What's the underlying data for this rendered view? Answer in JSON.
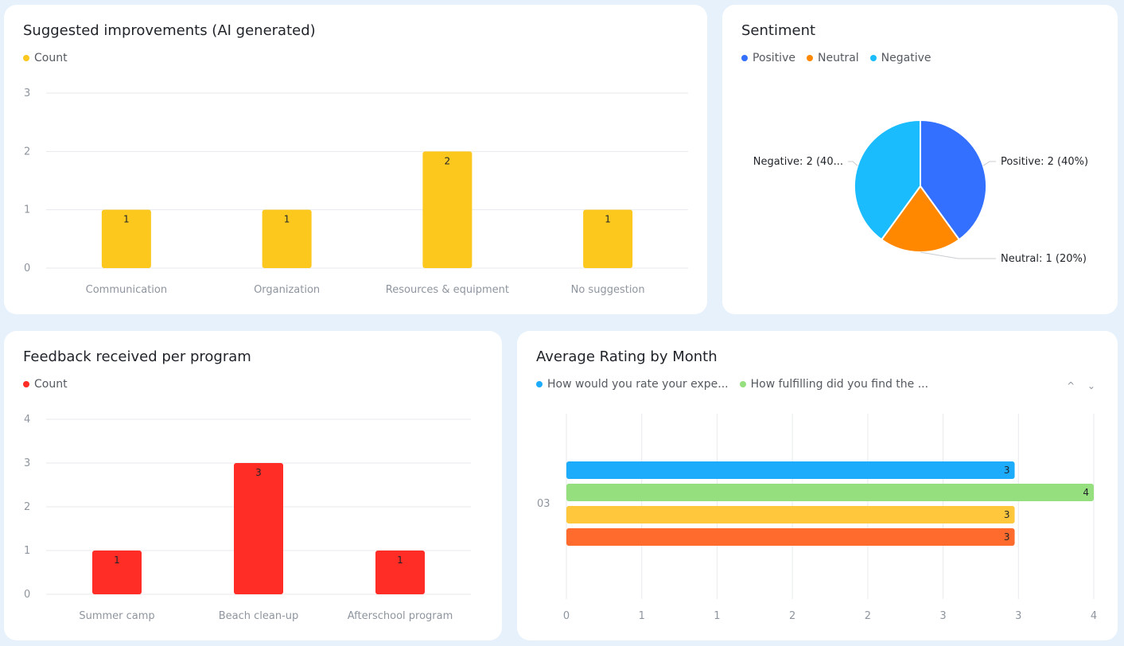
{
  "colors": {
    "improvements": "#fcc81e",
    "program": "#ff2d26",
    "positive": "#3370ff",
    "neutral": "#ff8800",
    "negative": "#1abcfe",
    "rating_series": [
      "#1cacfb",
      "#95df7e",
      "#ffc73c",
      "#ff6b2c"
    ]
  },
  "improvements": {
    "title": "Suggested improvements (AI generated)",
    "legend": "Count",
    "chart_data": {
      "type": "bar",
      "categories": [
        "Communication",
        "Organization",
        "Resources & equipment",
        "No suggestion"
      ],
      "values": [
        1,
        1,
        2,
        1
      ],
      "yticks": [
        "0",
        "1",
        "2",
        "3"
      ],
      "ylim": [
        0,
        3
      ]
    }
  },
  "sentiment": {
    "title": "Sentiment",
    "legend": [
      "Positive",
      "Neutral",
      "Negative"
    ],
    "chart_data": {
      "type": "pie",
      "labels": [
        "Positive",
        "Neutral",
        "Negative"
      ],
      "values": [
        2,
        1,
        2
      ],
      "slice_labels": [
        "Positive: 2 (40%)",
        "Neutral: 1 (20%)",
        "Negative: 2 (40..."
      ]
    }
  },
  "program": {
    "title": "Feedback received per program",
    "legend": "Count",
    "chart_data": {
      "type": "bar",
      "categories": [
        "Summer camp",
        "Beach clean-up",
        "Afterschool program"
      ],
      "values": [
        1,
        3,
        1
      ],
      "yticks": [
        "0",
        "1",
        "2",
        "3",
        "4"
      ],
      "ylim": [
        0,
        4
      ]
    }
  },
  "rating": {
    "title": "Average Rating by Month",
    "legend": [
      "How would you rate your expe...",
      "How fulfilling did you find the ..."
    ],
    "arrows": "^ ⌄",
    "chart_data": {
      "type": "bar",
      "orientation": "horizontal",
      "category": "03",
      "values": [
        3.4,
        4,
        3.4,
        3.4
      ],
      "data_labels": [
        "3",
        "4",
        "3",
        "3"
      ],
      "xticks": [
        "0",
        "1",
        "1",
        "2",
        "2",
        "3",
        "3",
        "4"
      ],
      "xlim": [
        0,
        4
      ]
    }
  }
}
